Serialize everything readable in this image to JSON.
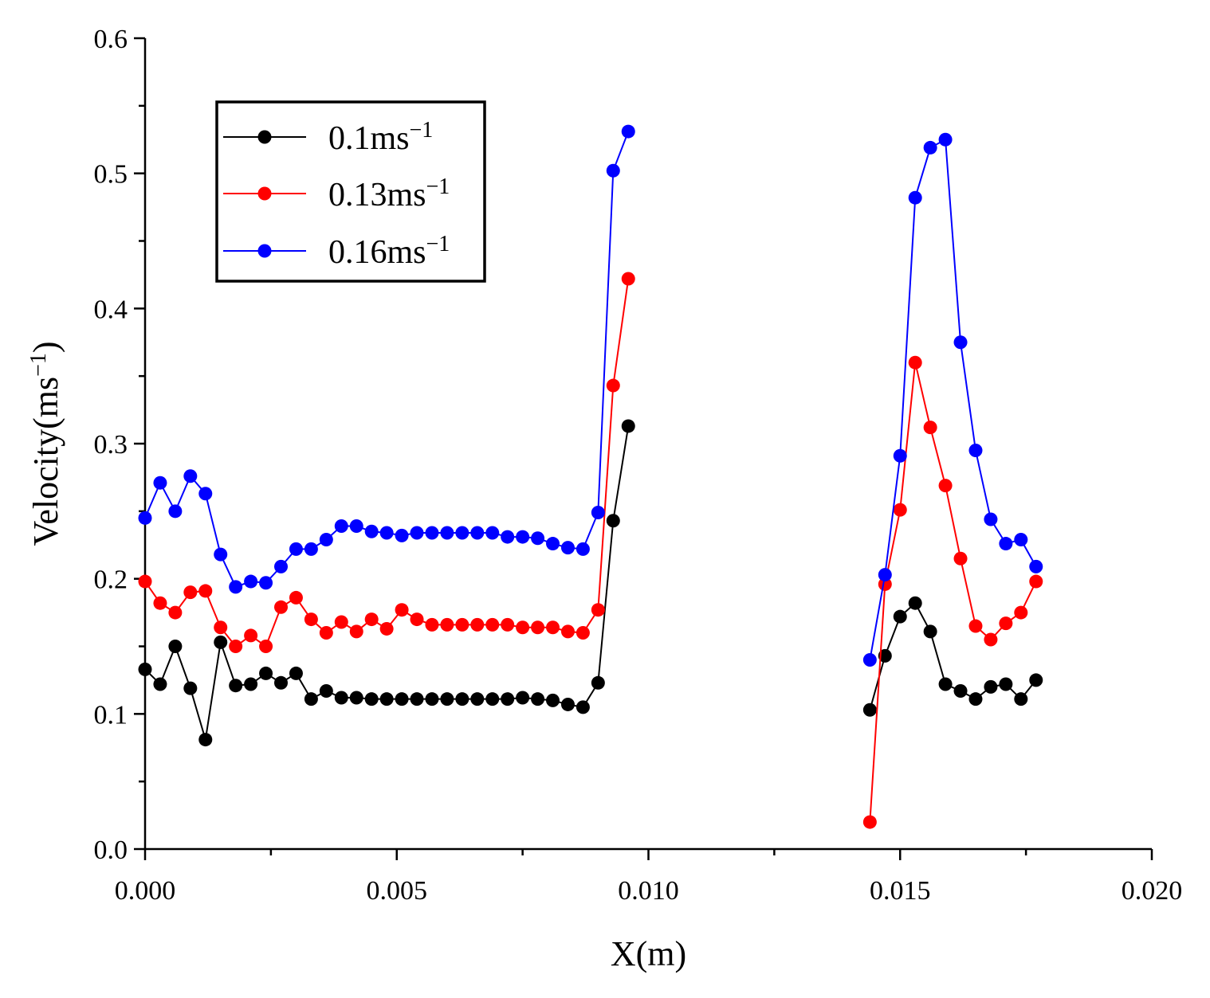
{
  "chart_data": {
    "type": "line",
    "title": "",
    "xlabel": "X(m)",
    "ylabel_base": "Velocity(ms",
    "ylabel_sup": "−1",
    "ylabel_close": ")",
    "xlim": [
      0.0,
      0.02
    ],
    "ylim": [
      0.0,
      0.6
    ],
    "x_ticks": [
      0.0,
      0.005,
      0.01,
      0.015,
      0.02
    ],
    "x_tick_labels": [
      "0.000",
      "0.005",
      "0.010",
      "0.015",
      "0.020"
    ],
    "y_ticks": [
      0.0,
      0.1,
      0.2,
      0.3,
      0.4,
      0.5,
      0.6
    ],
    "y_tick_labels": [
      "0.0",
      "0.1",
      "0.2",
      "0.3",
      "0.4",
      "0.5",
      "0.6"
    ],
    "grid": false,
    "legend_position": "top-left",
    "series": [
      {
        "name": "0.1ms",
        "name_sup": "−1",
        "color": "#000000",
        "segments": [
          {
            "x": [
              0.0,
              0.0003,
              0.0006,
              0.0009,
              0.0012,
              0.0015,
              0.0018,
              0.0021,
              0.0024,
              0.0027,
              0.003,
              0.0033,
              0.0036,
              0.0039,
              0.0042,
              0.0045,
              0.0048,
              0.0051,
              0.0054,
              0.0057,
              0.006,
              0.0063,
              0.0066,
              0.0069,
              0.0072,
              0.0075,
              0.0078,
              0.0081,
              0.0084,
              0.0087,
              0.009,
              0.0093,
              0.0096
            ],
            "y": [
              0.133,
              0.122,
              0.15,
              0.119,
              0.081,
              0.153,
              0.121,
              0.122,
              0.13,
              0.123,
              0.13,
              0.111,
              0.117,
              0.112,
              0.112,
              0.111,
              0.111,
              0.111,
              0.111,
              0.111,
              0.111,
              0.111,
              0.111,
              0.111,
              0.111,
              0.112,
              0.111,
              0.11,
              0.107,
              0.105,
              0.123,
              0.243,
              0.313
            ]
          },
          {
            "x": [
              0.0144,
              0.0147,
              0.015,
              0.0153,
              0.0156,
              0.0159,
              0.0162,
              0.0165,
              0.0168,
              0.0171,
              0.0174,
              0.0177
            ],
            "y": [
              0.103,
              0.143,
              0.172,
              0.182,
              0.161,
              0.122,
              0.117,
              0.111,
              0.12,
              0.122,
              0.111,
              0.125
            ]
          }
        ]
      },
      {
        "name": "0.13ms",
        "name_sup": "−1",
        "color": "#ff0000",
        "segments": [
          {
            "x": [
              0.0,
              0.0003,
              0.0006,
              0.0009,
              0.0012,
              0.0015,
              0.0018,
              0.0021,
              0.0024,
              0.0027,
              0.003,
              0.0033,
              0.0036,
              0.0039,
              0.0042,
              0.0045,
              0.0048,
              0.0051,
              0.0054,
              0.0057,
              0.006,
              0.0063,
              0.0066,
              0.0069,
              0.0072,
              0.0075,
              0.0078,
              0.0081,
              0.0084,
              0.0087,
              0.009,
              0.0093,
              0.0096
            ],
            "y": [
              0.198,
              0.182,
              0.175,
              0.19,
              0.191,
              0.164,
              0.15,
              0.158,
              0.15,
              0.179,
              0.186,
              0.17,
              0.16,
              0.168,
              0.161,
              0.17,
              0.163,
              0.177,
              0.17,
              0.166,
              0.166,
              0.166,
              0.166,
              0.166,
              0.166,
              0.164,
              0.164,
              0.164,
              0.161,
              0.16,
              0.177,
              0.343,
              0.422
            ]
          },
          {
            "x": [
              0.0144,
              0.0147,
              0.015,
              0.0153,
              0.0156,
              0.0159,
              0.0162,
              0.0165,
              0.0168,
              0.0171,
              0.0174,
              0.0177
            ],
            "y": [
              0.02,
              0.196,
              0.251,
              0.36,
              0.312,
              0.269,
              0.215,
              0.165,
              0.155,
              0.167,
              0.175,
              0.198
            ]
          }
        ]
      },
      {
        "name": "0.16ms",
        "name_sup": "−1",
        "color": "#0000ff",
        "segments": [
          {
            "x": [
              0.0,
              0.0003,
              0.0006,
              0.0009,
              0.0012,
              0.0015,
              0.0018,
              0.0021,
              0.0024,
              0.0027,
              0.003,
              0.0033,
              0.0036,
              0.0039,
              0.0042,
              0.0045,
              0.0048,
              0.0051,
              0.0054,
              0.0057,
              0.006,
              0.0063,
              0.0066,
              0.0069,
              0.0072,
              0.0075,
              0.0078,
              0.0081,
              0.0084,
              0.0087,
              0.009,
              0.0093,
              0.0096
            ],
            "y": [
              0.245,
              0.271,
              0.25,
              0.276,
              0.263,
              0.218,
              0.194,
              0.198,
              0.197,
              0.209,
              0.222,
              0.222,
              0.229,
              0.239,
              0.239,
              0.235,
              0.234,
              0.232,
              0.234,
              0.234,
              0.234,
              0.234,
              0.234,
              0.234,
              0.231,
              0.231,
              0.23,
              0.226,
              0.223,
              0.222,
              0.249,
              0.502,
              0.531
            ]
          },
          {
            "x": [
              0.0144,
              0.0147,
              0.015,
              0.0153,
              0.0156,
              0.0159,
              0.0162,
              0.0165,
              0.0168,
              0.0171,
              0.0174,
              0.0177
            ],
            "y": [
              0.14,
              0.203,
              0.291,
              0.482,
              0.519,
              0.525,
              0.375,
              0.295,
              0.244,
              0.226,
              0.229,
              0.209
            ]
          }
        ]
      }
    ]
  }
}
